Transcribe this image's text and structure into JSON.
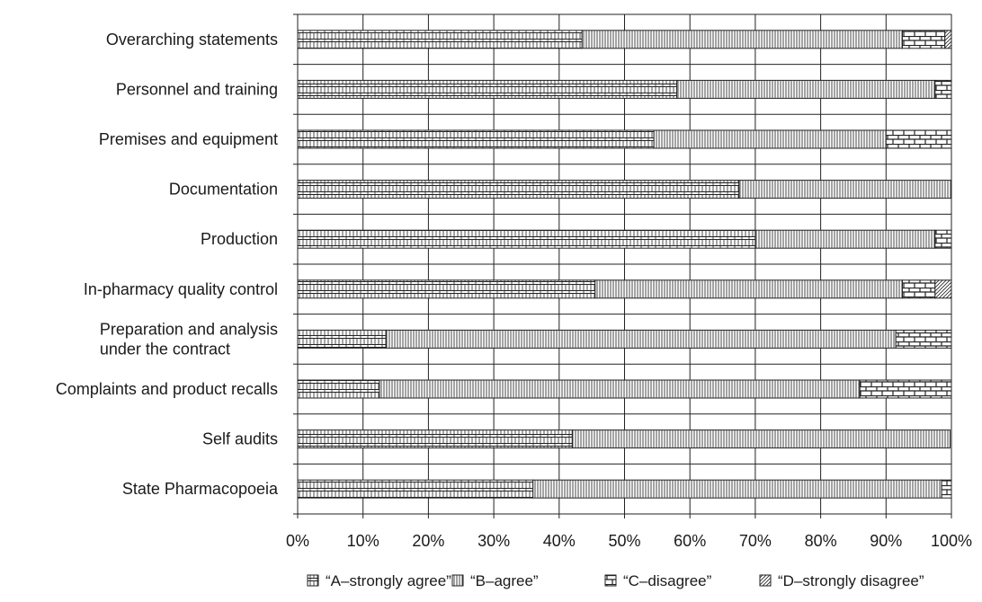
{
  "chart_data": {
    "type": "bar",
    "orientation": "horizontal",
    "stacked": true,
    "categories": [
      "Overarching statements",
      "Personnel and training",
      "Premises and equipment",
      "Documentation",
      "Production",
      "In-pharmacy quality control",
      "Preparation and analysis\nunder the contract",
      "Complaints and product recalls",
      "Self audits",
      "State Pharmacopoeia"
    ],
    "series": [
      {
        "name": "“A–strongly agree”",
        "pattern": "brick-dense",
        "values": [
          43.5,
          58,
          54.5,
          67.5,
          70,
          45.5,
          13.5,
          12.5,
          42,
          36
        ]
      },
      {
        "name": "“B–agree”",
        "pattern": "vertical-lines",
        "values": [
          49,
          39.5,
          35.5,
          32.5,
          27.5,
          47,
          78,
          73.5,
          57.8,
          62.5
        ]
      },
      {
        "name": "“C–disagree”",
        "pattern": "brick",
        "values": [
          6.5,
          2.5,
          10,
          0,
          2.5,
          5,
          8.5,
          14,
          0,
          1.5
        ]
      },
      {
        "name": "“D–strongly disagree”",
        "pattern": "diagonal-lines",
        "values": [
          1,
          0,
          0,
          0,
          0,
          2.5,
          0,
          0,
          0,
          0
        ]
      }
    ],
    "xlim": [
      0,
      100
    ],
    "x_ticks": [
      "0%",
      "10%",
      "20%",
      "30%",
      "40%",
      "50%",
      "60%",
      "70%",
      "80%",
      "90%",
      "100%"
    ],
    "xlabel": "",
    "ylabel": "",
    "title": "",
    "grid": true,
    "legend_position": "bottom"
  }
}
